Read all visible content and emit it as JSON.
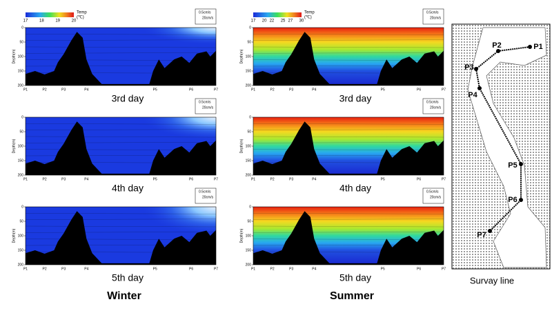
{
  "columns": [
    {
      "title": "Winter",
      "colorbar": {
        "ticks": [
          17,
          18,
          19,
          20
        ],
        "label": "Temp",
        "unit": "(℃)"
      },
      "panels": [
        {
          "label": "3rd day"
        },
        {
          "label": "4th day"
        },
        {
          "label": "5th day"
        }
      ]
    },
    {
      "title": "Summer",
      "colorbar": {
        "ticks": [
          17,
          20,
          22,
          25,
          27,
          30
        ],
        "label": "Temp",
        "unit": "(℃)"
      },
      "panels": [
        {
          "label": "3rd day"
        },
        {
          "label": "4th day"
        },
        {
          "label": "5th day"
        }
      ]
    }
  ],
  "depth_axis": {
    "label": "Depth(m)",
    "ticks": [
      0,
      50,
      100,
      150,
      200
    ]
  },
  "stations": [
    "P1",
    "P2",
    "P3",
    "P4",
    "P5",
    "P6",
    "P7"
  ],
  "velocity_legend": [
    "0.5cm/s",
    "20cm/s"
  ],
  "map": {
    "title": "Survay line",
    "stations": [
      "P1",
      "P2",
      "P3",
      "P4",
      "P5",
      "P6",
      "P7"
    ]
  }
}
